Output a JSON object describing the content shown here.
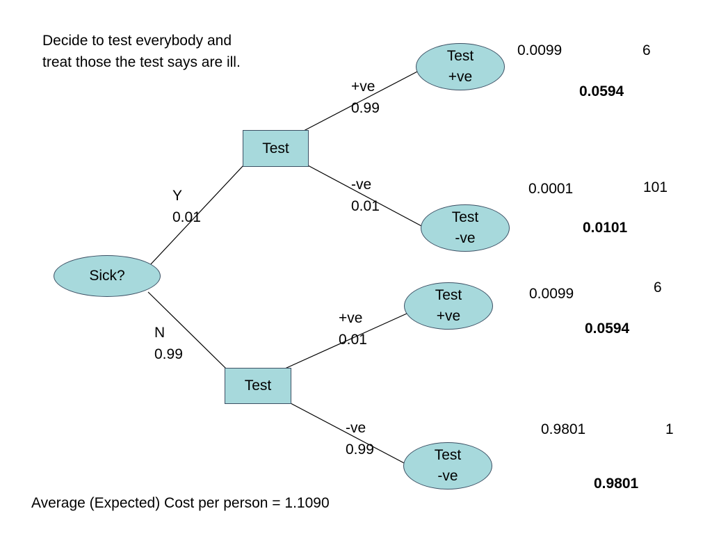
{
  "description": {
    "line1": "Decide to test everybody and",
    "line2": "treat those the test says are ill."
  },
  "root": {
    "label": "Sick?"
  },
  "branches": {
    "yes": {
      "label": "Y",
      "prob": "0.01"
    },
    "no": {
      "label": "N",
      "prob": "0.99"
    }
  },
  "test_nodes": {
    "upper": {
      "label": "Test"
    },
    "lower": {
      "label": "Test"
    }
  },
  "outcomes": [
    {
      "edge_label": "+ve",
      "edge_prob": "0.99",
      "node_line1": "Test",
      "node_line2": "+ve",
      "prob": "0.0099",
      "cost": "6",
      "expected": "0.0594"
    },
    {
      "edge_label": "-ve",
      "edge_prob": "0.01",
      "node_line1": "Test",
      "node_line2": "-ve",
      "prob": "0.0001",
      "cost": "101",
      "expected": "0.0101"
    },
    {
      "edge_label": "+ve",
      "edge_prob": "0.01",
      "node_line1": "Test",
      "node_line2": "+ve",
      "prob": "0.0099",
      "cost": "6",
      "expected": "0.0594"
    },
    {
      "edge_label": "-ve",
      "edge_prob": "0.99",
      "node_line1": "Test",
      "node_line2": "-ve",
      "prob": "0.9801",
      "cost": "1",
      "expected": "0.9801"
    }
  ],
  "summary": "Average (Expected) Cost per person = 1.1090",
  "colors": {
    "node_fill": "#a7d9dc",
    "node_border": "#3b4f63",
    "edge": "#000000"
  }
}
